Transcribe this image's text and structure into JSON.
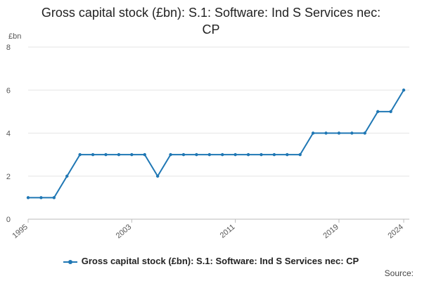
{
  "chart_data": {
    "type": "line",
    "title_line1": "Gross capital stock (£bn): S.1: Software: Ind S Services nec:",
    "title_line2": "CP",
    "y_unit": "£bn",
    "ylim": [
      0,
      8
    ],
    "y_ticks": [
      "0",
      "2",
      "4",
      "6",
      "8"
    ],
    "x_ticks": [
      "1995",
      "2003",
      "2011",
      "2019",
      "2024"
    ],
    "grid": true,
    "legend_position": "bottom",
    "series": [
      {
        "name": "Gross capital stock (£bn): S.1: Software: Ind S Services nec: CP",
        "color": "#1f77b4",
        "x": [
          1995,
          1996,
          1997,
          1998,
          1999,
          2000,
          2001,
          2002,
          2003,
          2004,
          2005,
          2006,
          2007,
          2008,
          2009,
          2010,
          2011,
          2012,
          2013,
          2014,
          2015,
          2016,
          2017,
          2018,
          2019,
          2020,
          2021,
          2022,
          2023,
          2024
        ],
        "values": [
          1,
          1,
          1,
          2,
          3,
          3,
          3,
          3,
          3,
          3,
          2,
          3,
          3,
          3,
          3,
          3,
          3,
          3,
          3,
          3,
          3,
          3,
          4,
          4,
          4,
          4,
          4,
          5,
          5,
          6
        ]
      }
    ]
  },
  "source_label": "Source:"
}
